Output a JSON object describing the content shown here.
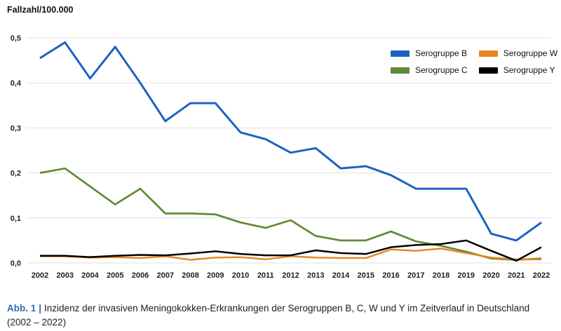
{
  "title": "Fallzahl/100.000",
  "chart_data": {
    "type": "line",
    "title": "Fallzahl/100.000",
    "xlabel": "",
    "ylabel": "Fallzahl/100.000",
    "ylim": [
      0,
      0.5
    ],
    "grid": true,
    "legend_position": "top-right",
    "y_ticks": [
      "0,0",
      "0,1",
      "0,2",
      "0,3",
      "0,4",
      "0,5"
    ],
    "y_tick_values": [
      0,
      0.1,
      0.2,
      0.3,
      0.4,
      0.5
    ],
    "categories": [
      "2002",
      "2003",
      "2004",
      "2005",
      "2006",
      "2007",
      "2008",
      "2009",
      "2010",
      "2011",
      "2012",
      "2013",
      "2014",
      "2015",
      "2016",
      "2017",
      "2018",
      "2019",
      "2020",
      "2021",
      "2022"
    ],
    "series": [
      {
        "name": "Serogruppe B",
        "color": "#1b63c2",
        "values": [
          0.455,
          0.49,
          0.41,
          0.48,
          0.4,
          0.315,
          0.355,
          0.355,
          0.29,
          0.275,
          0.245,
          0.255,
          0.21,
          0.215,
          0.195,
          0.165,
          0.165,
          0.165,
          0.065,
          0.05,
          0.09
        ]
      },
      {
        "name": "Serogruppe C",
        "color": "#5f8a38",
        "values": [
          0.2,
          0.21,
          0.17,
          0.13,
          0.165,
          0.11,
          0.11,
          0.108,
          0.09,
          0.078,
          0.095,
          0.06,
          0.05,
          0.05,
          0.07,
          0.048,
          0.038,
          0.025,
          0.01,
          0.007,
          0.01
        ]
      },
      {
        "name": "Serogruppe W",
        "color": "#e6851e",
        "values": [
          0.015,
          0.015,
          0.012,
          0.013,
          0.011,
          0.015,
          0.007,
          0.012,
          0.013,
          0.008,
          0.015,
          0.012,
          0.011,
          0.011,
          0.03,
          0.027,
          0.032,
          0.022,
          0.012,
          0.008,
          0.008
        ]
      },
      {
        "name": "Serogruppe Y",
        "color": "#000000",
        "values": [
          0.016,
          0.016,
          0.013,
          0.016,
          0.018,
          0.017,
          0.021,
          0.026,
          0.02,
          0.017,
          0.017,
          0.028,
          0.022,
          0.02,
          0.035,
          0.04,
          0.042,
          0.05,
          0.027,
          0.005,
          0.035
        ]
      }
    ]
  },
  "caption": {
    "label": "Abb. 1",
    "separator": "|",
    "text": "Inzidenz der invasiven Meningokokken-Erkrankungen der Serogruppen B, C, W und Y im Zeitverlauf in Deutschland (2002 – 2022)"
  }
}
